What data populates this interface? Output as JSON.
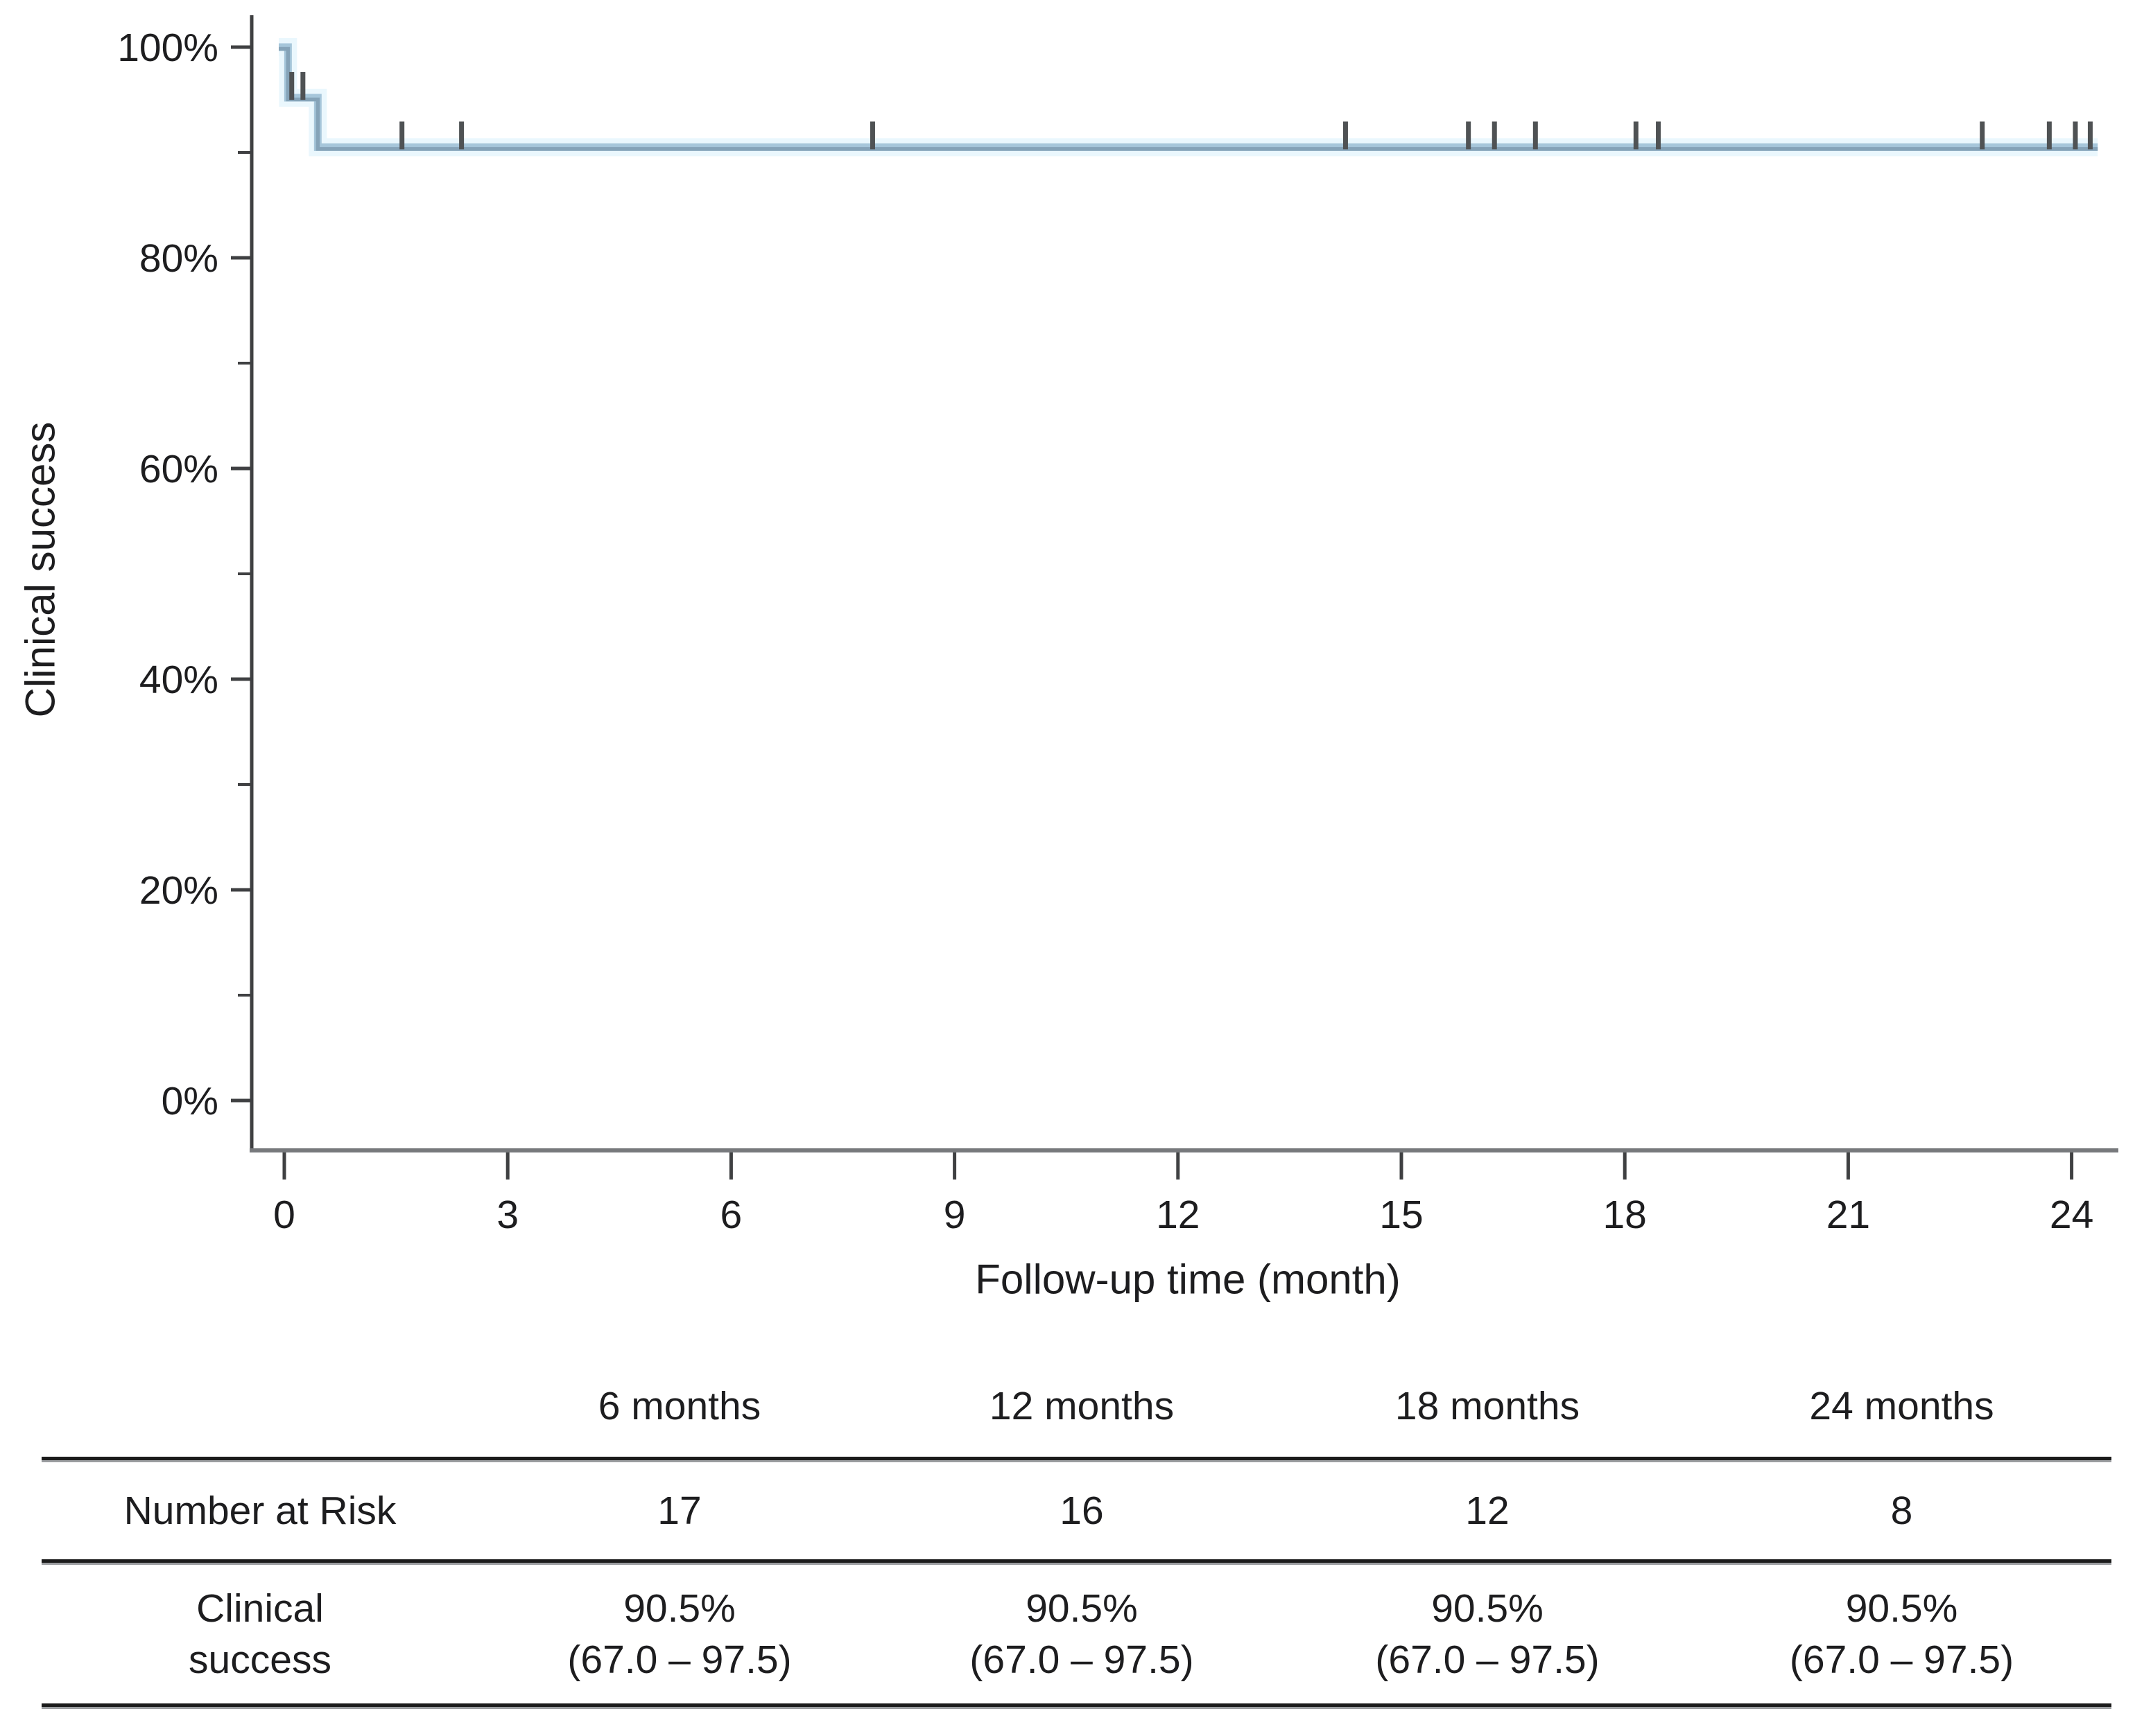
{
  "figure": {
    "y_axis_title": "Clinical success",
    "x_axis_title": "Follow-up time (month)"
  },
  "chart_data": {
    "type": "line",
    "subtype": "kaplan-meier-step",
    "title": "",
    "xlabel": "Follow-up time (month)",
    "ylabel": "Clinical success",
    "xlim": [
      0,
      24.6
    ],
    "ylim": [
      0,
      100
    ],
    "x_ticks": [
      0,
      3,
      6,
      9,
      12,
      15,
      18,
      21,
      24
    ],
    "y_major_ticks": [
      100,
      80,
      60,
      40,
      20,
      0
    ],
    "y_minor_ticks": [
      90,
      70,
      50,
      30,
      10
    ],
    "y_tick_suffix": "%",
    "grid": false,
    "legend": "none",
    "series": [
      {
        "name": "Clinical success",
        "color": "#85a3b8",
        "band_color": "#a6c6da",
        "halo_color": "#d9f1fb",
        "censor_color": "#4f5254",
        "step_points": [
          [
            0,
            100
          ],
          [
            0.05,
            95.2
          ],
          [
            0.45,
            90.5
          ],
          [
            24.35,
            90.5
          ]
        ],
        "censor_marks": [
          [
            0.1,
            95.2
          ],
          [
            0.25,
            95.2
          ],
          [
            1.58,
            90.5
          ],
          [
            2.38,
            90.5
          ],
          [
            7.9,
            90.5
          ],
          [
            14.25,
            90.5
          ],
          [
            15.9,
            90.5
          ],
          [
            16.25,
            90.5
          ],
          [
            16.8,
            90.5
          ],
          [
            18.15,
            90.5
          ],
          [
            18.45,
            90.5
          ],
          [
            22.8,
            90.5
          ],
          [
            23.7,
            90.5
          ],
          [
            24.05,
            90.5
          ],
          [
            24.25,
            90.5
          ]
        ]
      }
    ],
    "annotations": {
      "plateau_estimate": "90.5%",
      "plateau_ci": "(67.0 – 97.5)"
    }
  },
  "risk_table": {
    "corner_label": "",
    "column_headers": [
      "6 months",
      "12 months",
      "18 months",
      "24 months"
    ],
    "number_at_risk": {
      "label": "Number at Risk",
      "values": [
        "17",
        "16",
        "12",
        "8"
      ]
    },
    "clinical_success": {
      "label_line1": "Clinical",
      "label_line2": "success",
      "percent_values": [
        "90.5%",
        "90.5%",
        "90.5%",
        "90.5%"
      ],
      "ci_values": [
        "(67.0 – 97.5)",
        "(67.0 – 97.5)",
        "(67.0 – 97.5)",
        "(67.0 – 97.5)"
      ]
    }
  }
}
